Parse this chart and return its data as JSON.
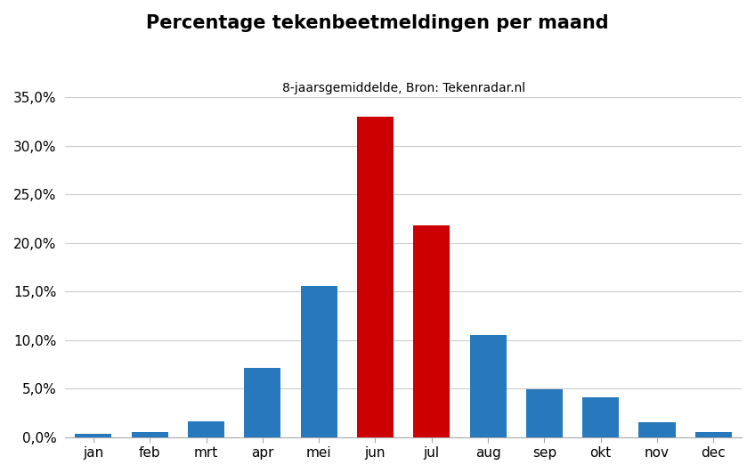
{
  "categories": [
    "jan",
    "feb",
    "mrt",
    "apr",
    "mei",
    "jun",
    "jul",
    "aug",
    "sep",
    "okt",
    "nov",
    "dec"
  ],
  "values": [
    0.003,
    0.005,
    0.016,
    0.071,
    0.156,
    0.33,
    0.218,
    0.105,
    0.049,
    0.041,
    0.015,
    0.005
  ],
  "colors": [
    "#2878bd",
    "#2878bd",
    "#2878bd",
    "#2878bd",
    "#2878bd",
    "#cc0000",
    "#cc0000",
    "#2878bd",
    "#2878bd",
    "#2878bd",
    "#2878bd",
    "#2878bd"
  ],
  "title": "Percentage tekenbeetmeldingen per maand",
  "subtitle": "8-jaarsgemiddelde, Bron: Tekenradar.nl",
  "ylim": [
    0,
    0.35
  ],
  "yticks": [
    0.0,
    0.05,
    0.1,
    0.15,
    0.2,
    0.25,
    0.3,
    0.35
  ],
  "title_fontsize": 15,
  "subtitle_fontsize": 10,
  "tick_fontsize": 11,
  "background_color": "#ffffff",
  "grid_color": "#cccccc"
}
